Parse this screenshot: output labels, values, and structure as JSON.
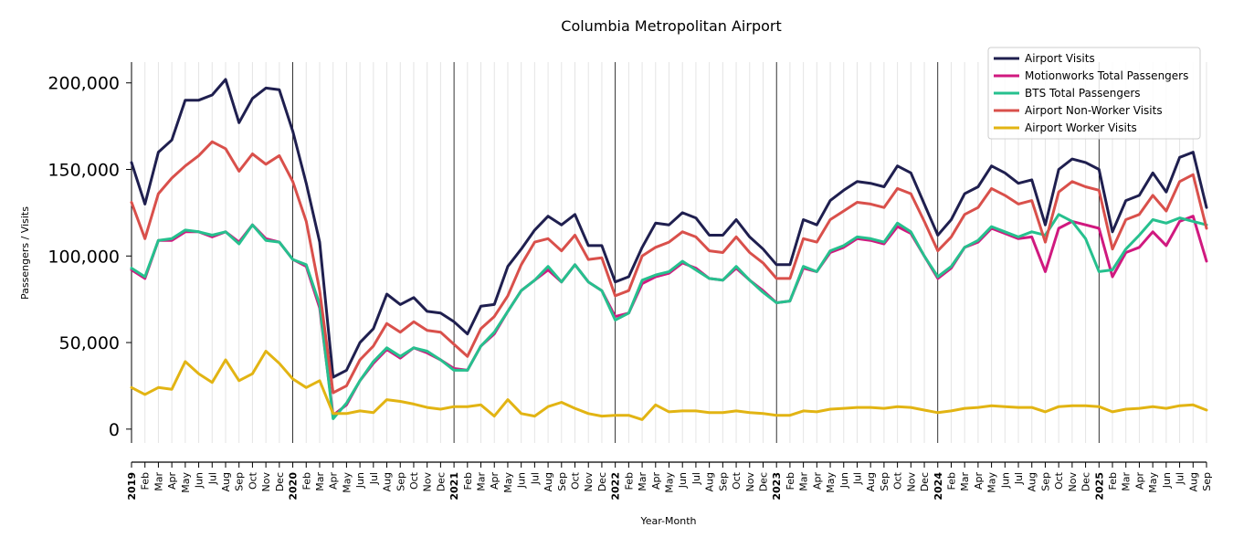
{
  "chart_data": {
    "type": "line",
    "title": "Columbia Metropolitan Airport",
    "xlabel": "Year-Month",
    "ylabel": "Passengers / Visits",
    "ylim": [
      -8000,
      212000
    ],
    "yticks": [
      0,
      50000,
      100000,
      150000,
      200000
    ],
    "ytick_labels": [
      "0",
      "50,000",
      "100,000",
      "150,000",
      "200,000"
    ],
    "grid": "vertical monthly lines, black at each January",
    "legend_position": "top-right",
    "x": [
      "2019-01",
      "2019-02",
      "2019-03",
      "2019-04",
      "2019-05",
      "2019-06",
      "2019-07",
      "2019-08",
      "2019-09",
      "2019-10",
      "2019-11",
      "2019-12",
      "2020-01",
      "2020-02",
      "2020-03",
      "2020-04",
      "2020-05",
      "2020-06",
      "2020-07",
      "2020-08",
      "2020-09",
      "2020-10",
      "2020-11",
      "2020-12",
      "2021-01",
      "2021-02",
      "2021-03",
      "2021-04",
      "2021-05",
      "2021-06",
      "2021-07",
      "2021-08",
      "2021-09",
      "2021-10",
      "2021-11",
      "2021-12",
      "2022-01",
      "2022-02",
      "2022-03",
      "2022-04",
      "2022-05",
      "2022-06",
      "2022-07",
      "2022-08",
      "2022-09",
      "2022-10",
      "2022-11",
      "2022-12",
      "2023-01",
      "2023-02",
      "2023-03",
      "2023-04",
      "2023-05",
      "2023-06",
      "2023-07",
      "2023-08",
      "2023-09",
      "2023-10",
      "2023-11",
      "2023-12",
      "2024-01",
      "2024-02",
      "2024-03",
      "2024-04",
      "2024-05",
      "2024-06",
      "2024-07",
      "2024-08",
      "2024-09",
      "2024-10",
      "2024-11",
      "2024-12",
      "2025-01",
      "2025-02",
      "2025-03",
      "2025-04",
      "2025-05",
      "2025-06",
      "2025-07",
      "2025-08",
      "2025-09"
    ],
    "x_tick_labels": [
      "2019",
      "Feb",
      "Mar",
      "Apr",
      "May",
      "Jun",
      "Jul",
      "Aug",
      "Sep",
      "Oct",
      "Nov",
      "Dec",
      "2020",
      "Feb",
      "Mar",
      "Apr",
      "May",
      "Jun",
      "Jul",
      "Aug",
      "Sep",
      "Oct",
      "Nov",
      "Dec",
      "2021",
      "Feb",
      "Mar",
      "Apr",
      "May",
      "Jun",
      "Jul",
      "Aug",
      "Sep",
      "Oct",
      "Nov",
      "Dec",
      "2022",
      "Feb",
      "Mar",
      "Apr",
      "May",
      "Jun",
      "Jul",
      "Aug",
      "Sep",
      "Oct",
      "Nov",
      "Dec",
      "2023",
      "Feb",
      "Mar",
      "Apr",
      "May",
      "Jun",
      "Jul",
      "Aug",
      "Sep",
      "Oct",
      "Nov",
      "Dec",
      "2024",
      "Feb",
      "Mar",
      "Apr",
      "May",
      "Jun",
      "Jul",
      "Aug",
      "Sep",
      "Oct",
      "Nov",
      "Dec",
      "2025",
      "Feb",
      "Mar",
      "Apr",
      "May",
      "Jun",
      "Jul",
      "Aug",
      "Sep"
    ],
    "series": [
      {
        "name": "Airport Visits",
        "color": "#1f1f4f",
        "values": [
          154000,
          130000,
          160000,
          167000,
          190000,
          190000,
          193000,
          202000,
          177000,
          191000,
          197000,
          196000,
          172000,
          142000,
          108000,
          30000,
          34000,
          50000,
          58000,
          78000,
          72000,
          76000,
          68000,
          67000,
          62000,
          55000,
          71000,
          72000,
          94000,
          104000,
          115000,
          123000,
          118000,
          124000,
          106000,
          106000,
          85000,
          88000,
          105000,
          119000,
          118000,
          125000,
          122000,
          112000,
          112000,
          121000,
          111000,
          104000,
          95000,
          95000,
          121000,
          118000,
          132000,
          138000,
          143000,
          142000,
          140000,
          152000,
          148000,
          130000,
          112000,
          121000,
          136000,
          140000,
          152000,
          148000,
          142000,
          144000,
          118000,
          150000,
          156000,
          154000,
          150000,
          114000,
          132000,
          135000,
          148000,
          137000,
          157000,
          160000,
          128000
        ]
      },
      {
        "name": "Motionworks Total Passengers",
        "color": "#d0197f",
        "values": [
          92000,
          87000,
          109000,
          109000,
          114000,
          114000,
          111000,
          114000,
          108000,
          118000,
          110000,
          108000,
          98000,
          94000,
          70000,
          8000,
          14000,
          28000,
          38000,
          46000,
          41000,
          47000,
          44000,
          40000,
          35000,
          34000,
          48000,
          55000,
          68000,
          80000,
          86000,
          92000,
          85000,
          95000,
          85000,
          80000,
          65000,
          67000,
          84000,
          88000,
          90000,
          96000,
          93000,
          87000,
          86000,
          93000,
          86000,
          80000,
          73000,
          74000,
          93000,
          91000,
          102000,
          105000,
          110000,
          109000,
          107000,
          117000,
          113000,
          100000,
          87000,
          93000,
          105000,
          108000,
          116000,
          113000,
          110000,
          111000,
          91000,
          116000,
          120000,
          118000,
          116000,
          88000,
          102000,
          105000,
          114000,
          106000,
          120000,
          123000,
          97000
        ]
      },
      {
        "name": "BTS Total Passengers",
        "color": "#26c08e",
        "values": [
          93000,
          88000,
          109000,
          110000,
          115000,
          114000,
          112000,
          114000,
          107000,
          118000,
          109000,
          108000,
          98000,
          95000,
          72000,
          6000,
          15000,
          28000,
          39000,
          47000,
          42000,
          47000,
          45000,
          40000,
          34000,
          34000,
          48000,
          56000,
          68000,
          80000,
          86000,
          94000,
          85000,
          95000,
          85000,
          80000,
          63000,
          67000,
          86000,
          89000,
          91000,
          97000,
          92000,
          87000,
          86000,
          94000,
          86000,
          79000,
          73000,
          74000,
          94000,
          91000,
          103000,
          106000,
          111000,
          110000,
          108000,
          119000,
          114000,
          100000,
          88000,
          94000,
          105000,
          109000,
          117000,
          114000,
          111000,
          114000,
          112000,
          124000,
          120000,
          110000,
          91000,
          92000,
          104000,
          112000,
          121000,
          119000,
          122000,
          120000,
          118000
        ]
      },
      {
        "name": "Airport Non-Worker Visits",
        "color": "#d9504b",
        "values": [
          131000,
          110000,
          136000,
          145000,
          152000,
          158000,
          166000,
          162000,
          149000,
          159000,
          153000,
          158000,
          143000,
          120000,
          80000,
          21000,
          25000,
          40000,
          48000,
          61000,
          56000,
          62000,
          57000,
          56000,
          49000,
          42000,
          58000,
          65000,
          77000,
          95000,
          108000,
          110000,
          103000,
          112000,
          98000,
          99000,
          77000,
          80000,
          100000,
          105000,
          108000,
          114000,
          111000,
          103000,
          102000,
          111000,
          102000,
          96000,
          87000,
          87000,
          110000,
          108000,
          121000,
          126000,
          131000,
          130000,
          128000,
          139000,
          136000,
          120000,
          103000,
          111000,
          124000,
          128000,
          139000,
          135000,
          130000,
          132000,
          108000,
          137000,
          143000,
          140000,
          138000,
          104000,
          121000,
          124000,
          135000,
          126000,
          143000,
          147000,
          116000
        ]
      },
      {
        "name": "Airport Worker Visits",
        "color": "#e2b413",
        "values": [
          24000,
          20000,
          24000,
          23000,
          39000,
          32000,
          27000,
          40000,
          28000,
          32000,
          45000,
          38000,
          29000,
          24000,
          28000,
          9000,
          9000,
          10500,
          9500,
          17000,
          16000,
          14500,
          12500,
          11500,
          13000,
          13000,
          14000,
          7500,
          17000,
          9000,
          7500,
          13000,
          15500,
          12000,
          9000,
          7500,
          8000,
          8000,
          5500,
          14000,
          10000,
          10500,
          10500,
          9500,
          9500,
          10500,
          9500,
          9000,
          8000,
          8000,
          10500,
          10000,
          11500,
          12000,
          12500,
          12500,
          12000,
          13000,
          12500,
          11000,
          9500,
          10500,
          12000,
          12500,
          13500,
          13000,
          12500,
          12500,
          10000,
          13000,
          13500,
          13500,
          13000,
          10000,
          11500,
          12000,
          13000,
          12000,
          13500,
          14000,
          11000
        ]
      }
    ]
  }
}
